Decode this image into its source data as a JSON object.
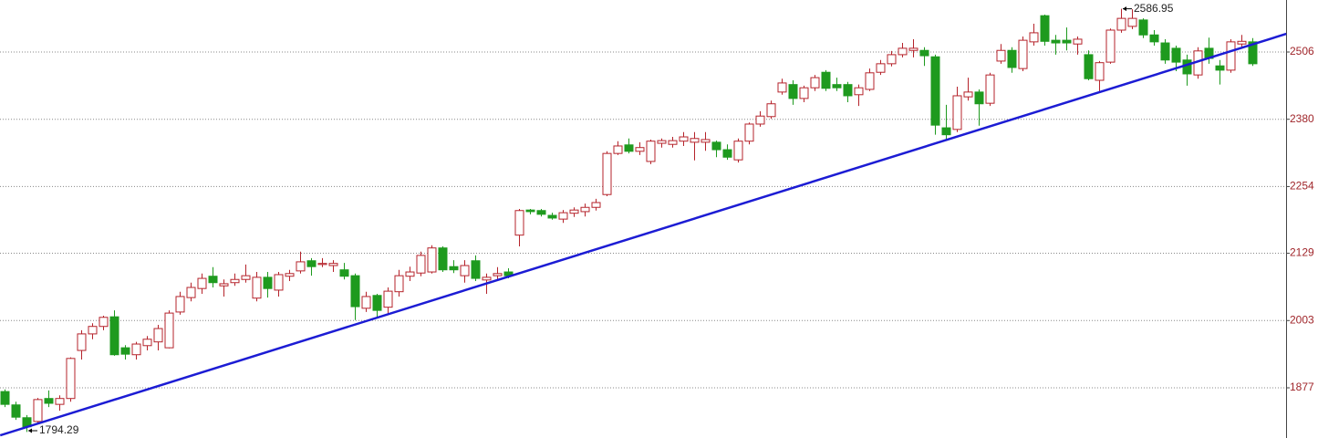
{
  "chart_data": {
    "type": "candlestick",
    "open": [
      1870,
      1845,
      1821,
      1814,
      1857,
      1846,
      1857,
      1947,
      1978,
      1992,
      2010,
      1952,
      1939,
      1956,
      1963,
      1952,
      2019,
      2046,
      2063,
      2086,
      2068,
      2074,
      2080,
      2045,
      2084,
      2060,
      2086,
      2096,
      2115,
      2108,
      2106,
      2098,
      2087,
      2026,
      2050,
      2028,
      2057,
      2086,
      2092,
      2094,
      2139,
      2104,
      2087,
      2115,
      2079,
      2087,
      2094,
      2163,
      2210,
      2209,
      2200,
      2193,
      2204,
      2207,
      2215,
      2239,
      2316,
      2332,
      2320,
      2301,
      2335,
      2333,
      2339,
      2337,
      2337,
      2337,
      2323,
      2304,
      2339,
      2371,
      2385,
      2431,
      2445,
      2419,
      2439,
      2468,
      2445,
      2445,
      2426,
      2436,
      2468,
      2484,
      2501,
      2509,
      2509,
      2497,
      2364,
      2361,
      2422,
      2431,
      2410,
      2489,
      2509,
      2475,
      2525,
      2574,
      2528,
      2528,
      2521,
      2501,
      2453,
      2487,
      2547,
      2554,
      2566,
      2538,
      2523,
      2513,
      2491,
      2463,
      2513,
      2480,
      2472,
      2521,
      2525
    ],
    "high": [
      1874,
      1851,
      1826,
      1858,
      1872,
      1863,
      1934,
      1985,
      1998,
      2012,
      2022,
      1957,
      1963,
      1974,
      1995,
      2022,
      2057,
      2074,
      2091,
      2103,
      2080,
      2091,
      2108,
      2094,
      2094,
      2094,
      2098,
      2132,
      2120,
      2120,
      2116,
      2111,
      2091,
      2057,
      2053,
      2065,
      2098,
      2104,
      2132,
      2144,
      2142,
      2116,
      2116,
      2125,
      2091,
      2103,
      2101,
      2212,
      2212,
      2212,
      2205,
      2210,
      2215,
      2222,
      2231,
      2320,
      2339,
      2344,
      2337,
      2342,
      2344,
      2347,
      2356,
      2356,
      2356,
      2340,
      2333,
      2344,
      2374,
      2395,
      2415,
      2456,
      2453,
      2443,
      2463,
      2472,
      2458,
      2450,
      2445,
      2475,
      2491,
      2508,
      2523,
      2530,
      2515,
      2501,
      2407,
      2441,
      2458,
      2436,
      2467,
      2521,
      2515,
      2535,
      2559,
      2576,
      2538,
      2552,
      2535,
      2509,
      2489,
      2550,
      2586.95,
      2586,
      2569,
      2547,
      2530,
      2518,
      2501,
      2515,
      2533,
      2491,
      2530,
      2538,
      2532
    ],
    "low": [
      1841,
      1817,
      1794.29,
      1810,
      1841,
      1834,
      1851,
      1930,
      1968,
      1985,
      1937,
      1930,
      1930,
      1947,
      1947,
      1951,
      2014,
      2039,
      2053,
      2065,
      2048,
      2068,
      2074,
      2039,
      2046,
      2048,
      2077,
      2091,
      2087,
      2103,
      2094,
      2080,
      2004,
      2019,
      2009,
      2014,
      2048,
      2077,
      2086,
      2091,
      2094,
      2092,
      2074,
      2077,
      2053,
      2080,
      2082,
      2142,
      2202,
      2198,
      2192,
      2186,
      2197,
      2198,
      2209,
      2236,
      2313,
      2316,
      2313,
      2296,
      2327,
      2327,
      2330,
      2303,
      2321,
      2309,
      2304,
      2299,
      2333,
      2366,
      2381,
      2426,
      2407,
      2412,
      2433,
      2433,
      2433,
      2412,
      2405,
      2433,
      2463,
      2479,
      2496,
      2496,
      2480,
      2351,
      2342,
      2356,
      2415,
      2368,
      2405,
      2484,
      2467,
      2470,
      2518,
      2518,
      2501,
      2509,
      2501,
      2453,
      2429,
      2484,
      2542,
      2549,
      2532,
      2518,
      2484,
      2470,
      2443,
      2456,
      2484,
      2445,
      2467,
      2515,
      2480
    ],
    "close": [
      1846,
      1822,
      1804,
      1855,
      1848,
      1857,
      1932,
      1978,
      1992,
      2009,
      1939,
      1940,
      1959,
      1968,
      1988,
      2017,
      2048,
      2065,
      2082,
      2074,
      2072,
      2080,
      2087,
      2084,
      2063,
      2089,
      2091,
      2113,
      2104,
      2110,
      2110,
      2086,
      2029,
      2048,
      2022,
      2058,
      2087,
      2094,
      2125,
      2139,
      2098,
      2098,
      2106,
      2082,
      2084,
      2091,
      2087,
      2209,
      2207,
      2202,
      2195,
      2205,
      2210,
      2215,
      2224,
      2316,
      2330,
      2320,
      2327,
      2339,
      2340,
      2340,
      2347,
      2344,
      2342,
      2323,
      2309,
      2339,
      2371,
      2386,
      2409,
      2448,
      2419,
      2439,
      2458,
      2438,
      2439,
      2424,
      2439,
      2467,
      2484,
      2501,
      2513,
      2513,
      2499,
      2369,
      2351,
      2424,
      2431,
      2409,
      2463,
      2509,
      2477,
      2528,
      2542,
      2526,
      2523,
      2523,
      2530,
      2456,
      2486,
      2547,
      2569,
      2569,
      2538,
      2525,
      2491,
      2487,
      2465,
      2508,
      2494,
      2472,
      2525,
      2526,
      2484
    ],
    "up_color": "#b5232b",
    "down_color": "#1e9a1e",
    "ylim": [
      1783,
      2603.4
    ],
    "yticks": [
      1877,
      2003,
      2129,
      2254,
      2380,
      2506
    ],
    "grid": true,
    "trendline": {
      "x": [
        -0.4,
        117.1
      ],
      "values": [
        1788,
        2540
      ],
      "color": "#1c1cd4"
    },
    "annotations": [
      {
        "label": "2586.95",
        "x": 102,
        "value": 2586.95
      },
      {
        "label": "1794.29",
        "x": 2,
        "value": 1794.29
      }
    ]
  }
}
